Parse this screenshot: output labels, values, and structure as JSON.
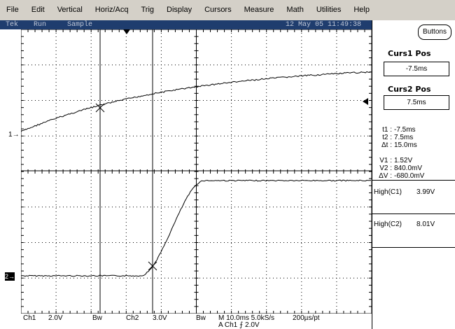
{
  "menu": [
    "File",
    "Edit",
    "Vertical",
    "Horiz/Acq",
    "Trig",
    "Display",
    "Cursors",
    "Measure",
    "Math",
    "Utilities",
    "Help"
  ],
  "status": {
    "brand": "Tek",
    "mode": "Run",
    "acq": "Sample",
    "datetime": "12 May 05 11:49:38"
  },
  "right_panel": {
    "buttons_label": "Buttons",
    "curs1_title": "Curs1 Pos",
    "curs1_value": "-7.5ms",
    "curs2_title": "Curs2 Pos",
    "curs2_value": "7.5ms",
    "t1_label": "t1 :",
    "t1_value": "-7.5ms",
    "t2_label": "t2 :",
    "t2_value": "7.5ms",
    "dt_label": "Δt :",
    "dt_value": "15.0ms",
    "v1_label": "V1 :",
    "v1_value": "1.52V",
    "v2_label": "V2 :",
    "v2_value": "840.0mV",
    "dv_label": "ΔV :",
    "dv_value": "-680.0mV",
    "meas1_label": "High(C1)",
    "meas1_value": "3.99V",
    "meas2_label": "High(C2)",
    "meas2_value": "8.01V"
  },
  "bottom": {
    "ch1": "Ch1",
    "ch1_scale": "2.0V",
    "bw1": "Bw",
    "ch2": "Ch2",
    "ch2_scale": "3.0V",
    "bw2": "Bw",
    "timebase": "M 10.0ms 5.0kS/s",
    "sample_interval": "200µs/pt",
    "trigger": "A  Ch1  ⨍  2.0V"
  },
  "markers": {
    "ch1": "1",
    "ch2": "2"
  },
  "colors": {
    "status_bg": "#1f3d6e",
    "menu_bg": "#d4d0c8",
    "trace": "#000000",
    "grid": "#000000"
  },
  "icons": [
    "trigger-position-marker-icon",
    "trigger-level-arrow-icon",
    "ch1-ground-marker-icon",
    "ch2-ground-marker-icon"
  ]
}
